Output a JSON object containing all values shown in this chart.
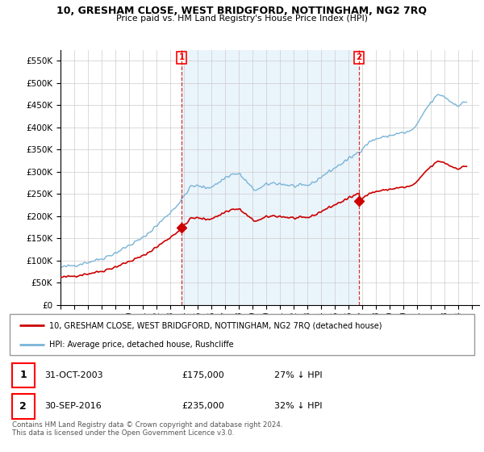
{
  "title": "10, GRESHAM CLOSE, WEST BRIDGFORD, NOTTINGHAM, NG2 7RQ",
  "subtitle": "Price paid vs. HM Land Registry's House Price Index (HPI)",
  "ylabel_ticks": [
    "£0",
    "£50K",
    "£100K",
    "£150K",
    "£200K",
    "£250K",
    "£300K",
    "£350K",
    "£400K",
    "£450K",
    "£500K",
    "£550K"
  ],
  "ytick_values": [
    0,
    50000,
    100000,
    150000,
    200000,
    250000,
    300000,
    350000,
    400000,
    450000,
    500000,
    550000
  ],
  "ylim": [
    0,
    575000
  ],
  "xlim_start": 1995.0,
  "xlim_end": 2025.5,
  "hpi_color": "#7ab4d8",
  "hpi_fill_color": "#d6eaf8",
  "price_color": "#cc0000",
  "marker1_x": 2003.83,
  "marker1_y": 175000,
  "marker2_x": 2016.75,
  "marker2_y": 235000,
  "legend_line1": "10, GRESHAM CLOSE, WEST BRIDGFORD, NOTTINGHAM, NG2 7RQ (detached house)",
  "legend_line2": "HPI: Average price, detached house, Rushcliffe",
  "table_rows": [
    {
      "num": "1",
      "date": "31-OCT-2003",
      "price": "£175,000",
      "pct": "27% ↓ HPI"
    },
    {
      "num": "2",
      "date": "30-SEP-2016",
      "price": "£235,000",
      "pct": "32% ↓ HPI"
    }
  ],
  "footnote1": "Contains HM Land Registry data © Crown copyright and database right 2024.",
  "footnote2": "This data is licensed under the Open Government Licence v3.0.",
  "xtick_years": [
    1995,
    1996,
    1997,
    1998,
    1999,
    2000,
    2001,
    2002,
    2003,
    2004,
    2005,
    2006,
    2007,
    2008,
    2009,
    2010,
    2011,
    2012,
    2013,
    2014,
    2015,
    2016,
    2017,
    2018,
    2019,
    2020,
    2021,
    2022,
    2023,
    2024,
    2025
  ],
  "bg_color": "#ffffff",
  "grid_color": "#cccccc"
}
